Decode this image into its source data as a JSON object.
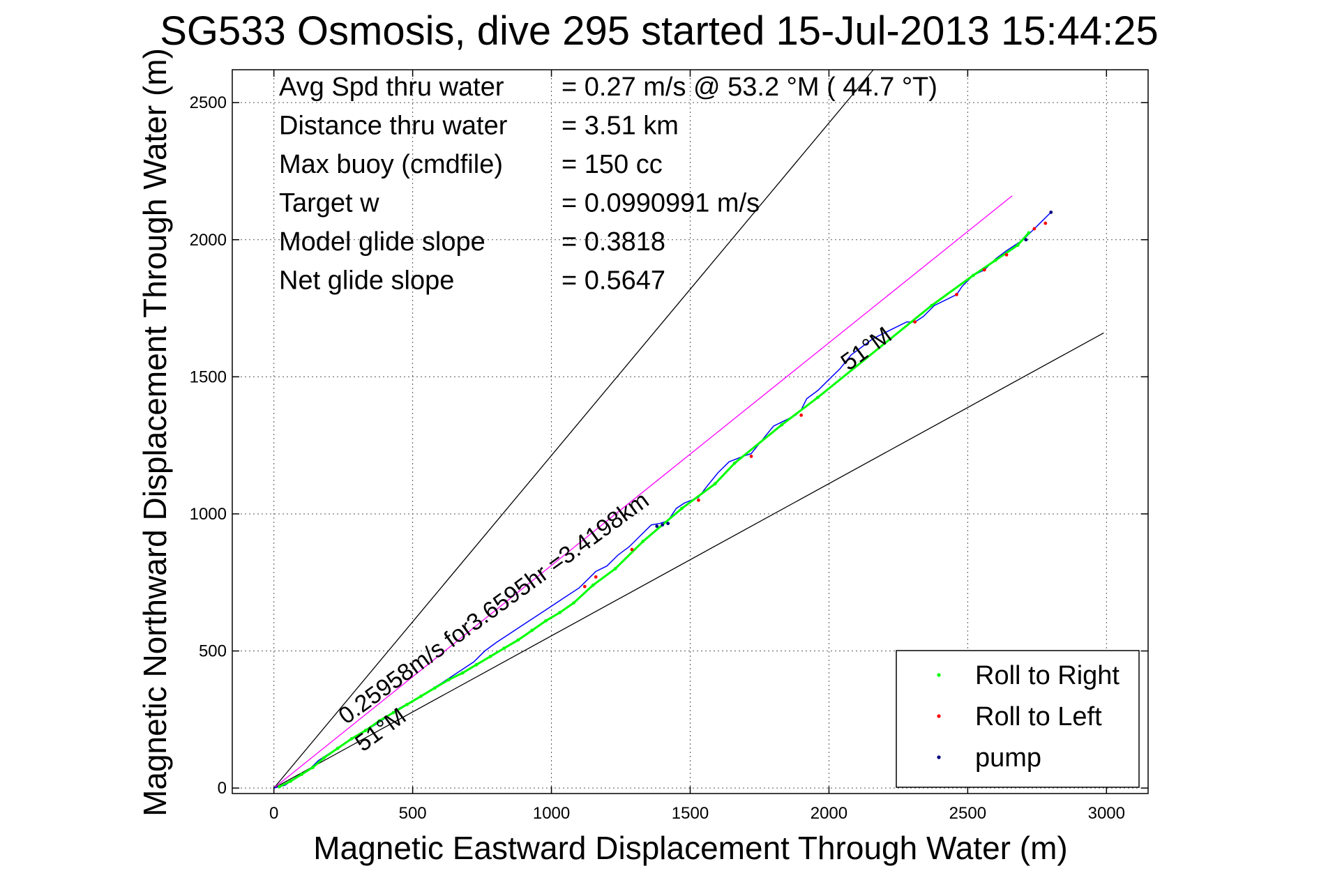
{
  "chart_data": {
    "type": "line",
    "title": "SG533 Osmosis, dive 295 started 15-Jul-2013 15:44:25",
    "xlabel": "Magnetic Eastward Displacement Through Water (m)",
    "ylabel": "Magnetic Northward Displacement Through Water (m)",
    "xlim": [
      -150,
      3150
    ],
    "ylim": [
      -20,
      2620
    ],
    "xticks": [
      0,
      500,
      1000,
      1500,
      2000,
      2500,
      3000
    ],
    "yticks": [
      0,
      500,
      1000,
      1500,
      2000,
      2500
    ],
    "grid": true,
    "legend_position": "bottom-right",
    "info_lines": [
      {
        "label": "Avg Spd thru water",
        "value": "=  0.27 m/s @  53.2 °M ( 44.7 °T)"
      },
      {
        "label": "Distance thru water",
        "value": "=  3.51 km"
      },
      {
        "label": "Max buoy (cmdfile)",
        "value": "= 150 cc"
      },
      {
        "label": "Target w",
        "value": "= 0.0990991 m/s"
      },
      {
        "label": "Model glide slope",
        "value": "= 0.3818"
      },
      {
        "label": "Net glide slope",
        "value": "= 0.5647"
      }
    ],
    "annotations": [
      {
        "text": "0.25958m/s for3.6595hr =3.4198km",
        "x": 260,
        "y": 230,
        "rotation_deg": -36
      },
      {
        "text": "51°M",
        "x": 320,
        "y": 130,
        "rotation_deg": -36
      },
      {
        "text": "51°M",
        "x": 2070,
        "y": 1520,
        "rotation_deg": -36
      }
    ],
    "reference_lines": [
      {
        "name": "upper bound",
        "color": "#000000",
        "x": [
          0,
          2160
        ],
        "y": [
          0,
          2620
        ]
      },
      {
        "name": "lower bound",
        "color": "#000000",
        "x": [
          0,
          2990
        ],
        "y": [
          0,
          1660
        ]
      },
      {
        "name": "magenta heading line",
        "color": "#ff00ff",
        "x": [
          0,
          2660
        ],
        "y": [
          0,
          2160
        ]
      }
    ],
    "track": {
      "color": "#0000ff",
      "x": [
        0,
        40,
        80,
        120,
        160,
        220,
        300,
        380,
        450,
        520,
        600,
        660,
        720,
        760,
        800,
        860,
        920,
        980,
        1040,
        1100,
        1130,
        1160,
        1200,
        1240,
        1280,
        1320,
        1360,
        1390,
        1420,
        1450,
        1480,
        1530,
        1560,
        1600,
        1640,
        1690,
        1720,
        1760,
        1800,
        1840,
        1880,
        1900,
        1920,
        1960,
        2000,
        2040,
        2080,
        2120,
        2160,
        2200,
        2240,
        2280,
        2310,
        2340,
        2380,
        2420,
        2460,
        2480,
        2520,
        2560,
        2600,
        2640,
        2670,
        2700,
        2720,
        2740,
        2760,
        2800
      ],
      "y": [
        0,
        10,
        40,
        60,
        100,
        140,
        190,
        240,
        290,
        330,
        380,
        420,
        460,
        500,
        530,
        570,
        610,
        650,
        690,
        730,
        760,
        790,
        810,
        850,
        880,
        920,
        960,
        965,
        975,
        1020,
        1040,
        1060,
        1100,
        1150,
        1190,
        1210,
        1220,
        1270,
        1320,
        1340,
        1360,
        1380,
        1420,
        1450,
        1490,
        1530,
        1580,
        1610,
        1640,
        1660,
        1680,
        1700,
        1700,
        1720,
        1760,
        1780,
        1800,
        1830,
        1870,
        1890,
        1930,
        1960,
        1980,
        2000,
        2020,
        2040,
        2060,
        2100
      ]
    },
    "series": [
      {
        "name": "Roll to Right",
        "color": "#00ff00",
        "x": [
          20,
          60,
          100,
          140,
          180,
          230,
          280,
          330,
          380,
          430,
          480,
          530,
          580,
          630,
          680,
          730,
          780,
          830,
          880,
          930,
          980,
          1030,
          1080,
          1150,
          1230,
          1330,
          1470,
          1590,
          1660,
          1830,
          1960,
          2370,
          2520,
          2600,
          2680,
          2720
        ],
        "y": [
          5,
          25,
          50,
          75,
          110,
          145,
          180,
          210,
          245,
          275,
          305,
          335,
          365,
          395,
          420,
          450,
          480,
          510,
          540,
          575,
          610,
          640,
          675,
          740,
          800,
          900,
          1020,
          1110,
          1185,
          1325,
          1425,
          1760,
          1870,
          1925,
          1980,
          2025
        ]
      },
      {
        "name": "Roll to Left",
        "color": "#ff0000",
        "x": [
          1120,
          1160,
          1290,
          1530,
          1720,
          1900,
          2310,
          2460,
          2560,
          2640,
          2740,
          2780
        ],
        "y": [
          735,
          770,
          870,
          1050,
          1210,
          1360,
          1700,
          1800,
          1890,
          1945,
          2040,
          2060
        ]
      },
      {
        "name": "pump",
        "color": "#000080",
        "x": [
          1380,
          1400,
          1420,
          2710,
          2800
        ],
        "y": [
          955,
          960,
          965,
          2000,
          2100
        ]
      }
    ]
  }
}
